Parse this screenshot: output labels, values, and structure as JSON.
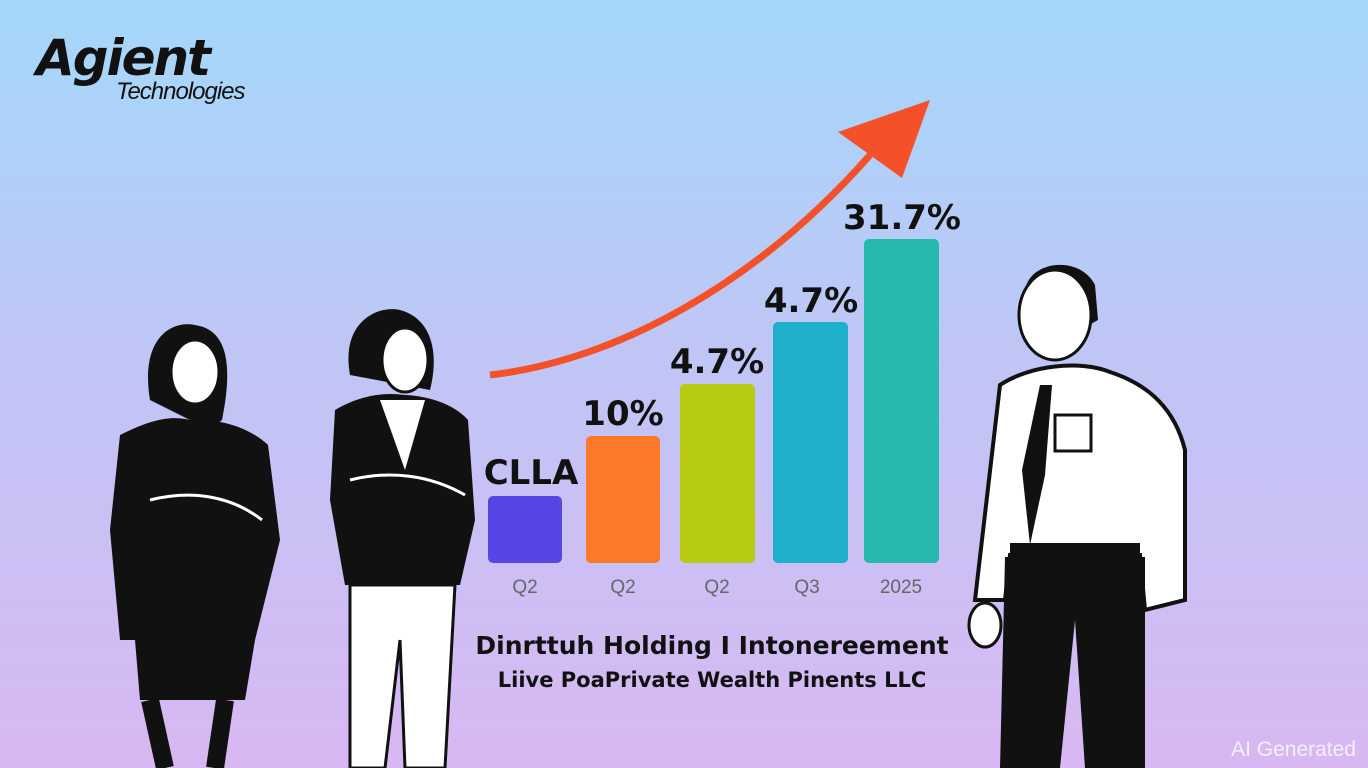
{
  "logo": {
    "name": "Agient",
    "tagline": "Technologies"
  },
  "bars": [
    {
      "label": "CLLA",
      "category": "Q2"
    },
    {
      "label": "10%",
      "category": "Q2"
    },
    {
      "label": "4.7%",
      "category": "Q2"
    },
    {
      "label": "4.7%",
      "category": "Q3"
    },
    {
      "label": "31.7%",
      "category": "2025"
    }
  ],
  "caption": {
    "line1": "Dinrttuh Holding I Intonereement",
    "line2": "Liive PoaPrivate Wealth Pinents LLC"
  },
  "watermark": "AI Generated"
}
